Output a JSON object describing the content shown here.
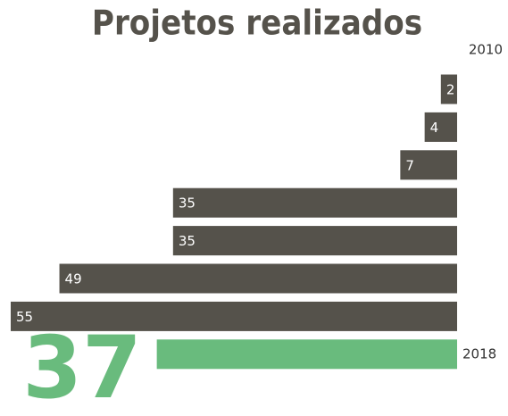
{
  "chart_data": {
    "type": "bar",
    "orientation": "horizontal",
    "title": "Projetos realizados",
    "categories": [
      "2010",
      null,
      null,
      null,
      null,
      null,
      null,
      "2018"
    ],
    "values": [
      2,
      4,
      7,
      35,
      35,
      49,
      55,
      37
    ],
    "colors": [
      "#55524b",
      "#55524b",
      "#55524b",
      "#55524b",
      "#55524b",
      "#55524b",
      "#55524b",
      "#69bb7d"
    ]
  }
}
